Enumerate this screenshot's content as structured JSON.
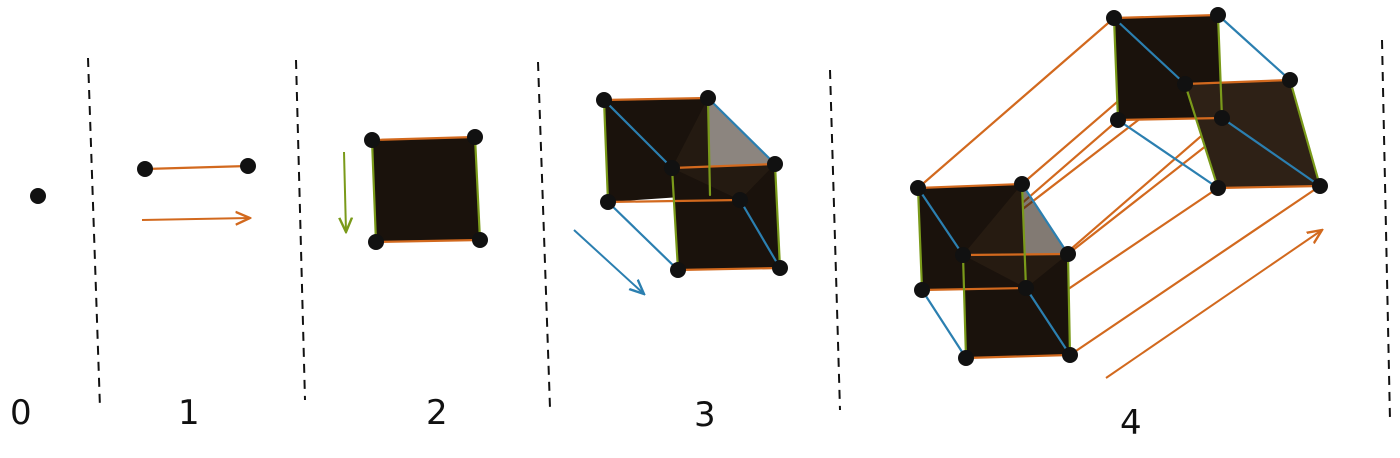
{
  "stage_labels": [
    "0",
    "1",
    "2",
    "3",
    "4"
  ],
  "colors": {
    "x_edges": "#d2691e",
    "y_edges": "#7a9a1a",
    "z_edges": "#2b7fb0",
    "face_fill": "#1a120c",
    "face_fill_shifted": "#2e2116",
    "vertex": "#111111",
    "divider": "#111111"
  },
  "icons": {
    "x_arrow": "orange-arrow-icon",
    "y_arrow": "green-arrow-icon",
    "z_arrow": "blue-arrow-icon",
    "w_arrow": "orange-diagonal-arrow-icon"
  }
}
